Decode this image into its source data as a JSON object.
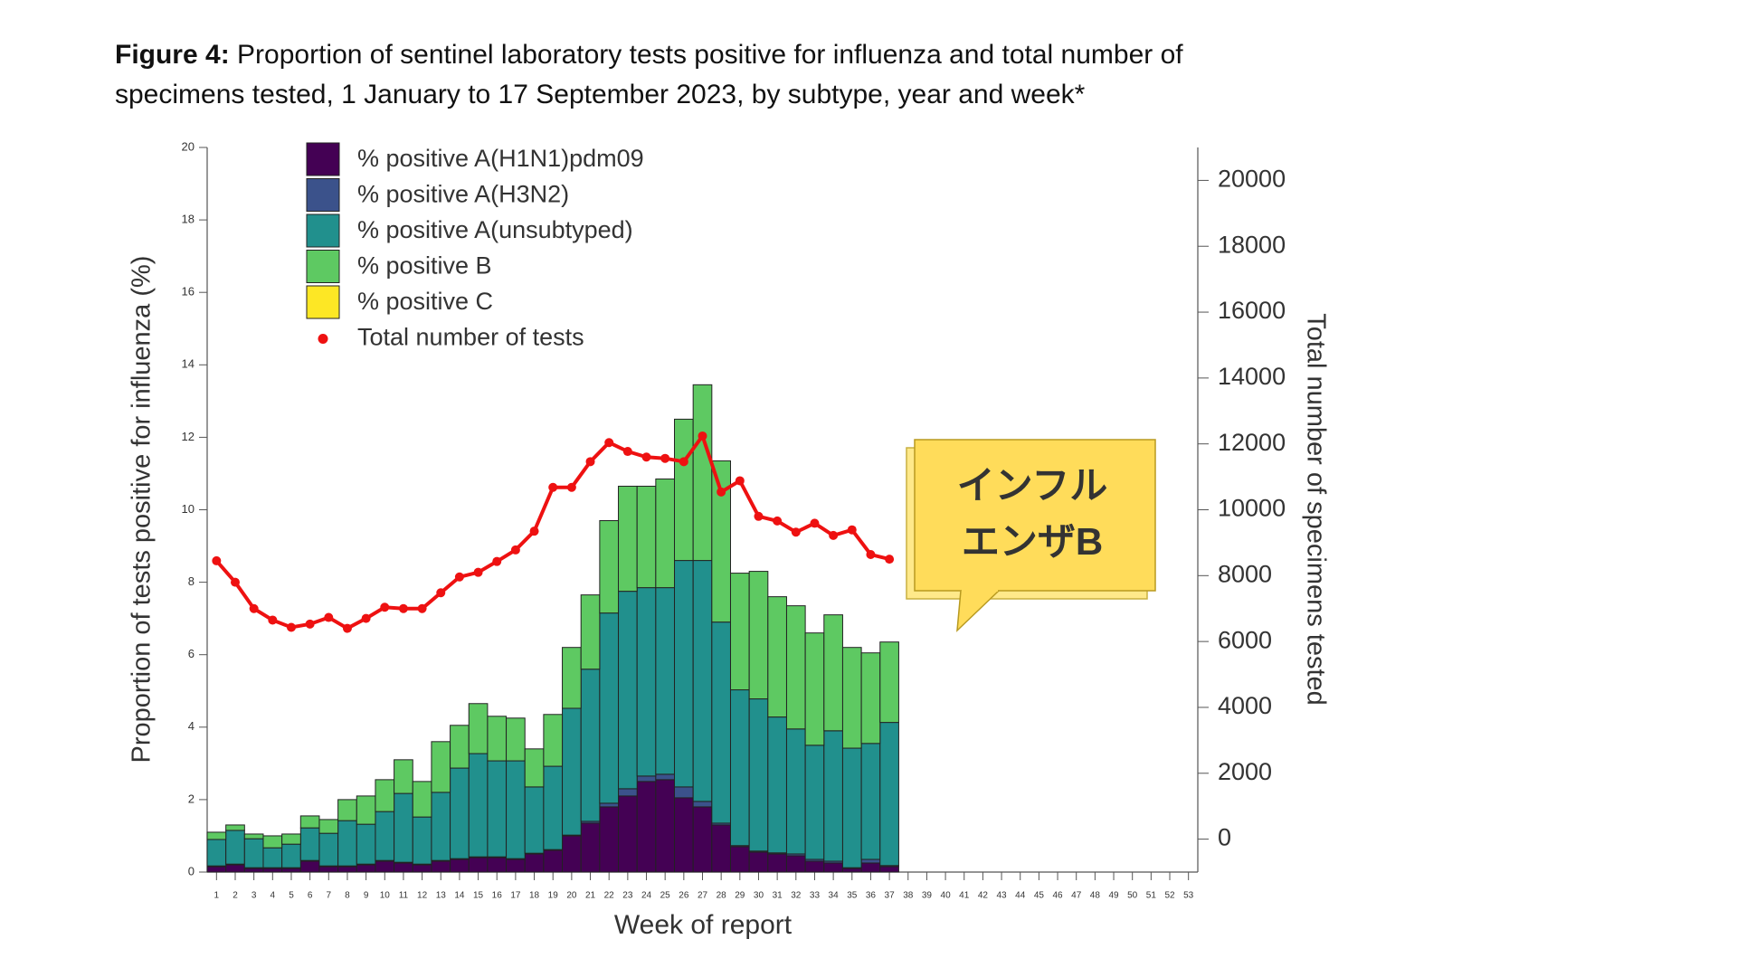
{
  "chart_data": {
    "type": "bar",
    "stacked": true,
    "figure_label": "Figure 4:",
    "title_lines": [
      "Proportion of sentinel laboratory tests positive for influenza and total number of",
      "specimens tested, 1 January to 17 September 2023, by subtype, year and week*"
    ],
    "x_label": "Week of report",
    "y_label": "Proportion of tests positive for influenza (%)",
    "y2_label": "Total number of specimens tested",
    "annotation_lines": [
      "インフル",
      "エンザB"
    ],
    "categories": [
      1,
      2,
      3,
      4,
      5,
      6,
      7,
      8,
      9,
      10,
      11,
      12,
      13,
      14,
      15,
      16,
      17,
      18,
      19,
      20,
      21,
      22,
      23,
      24,
      25,
      26,
      27,
      28,
      29,
      30,
      31,
      32,
      33,
      34,
      35,
      36,
      37,
      38,
      39,
      40,
      41,
      42,
      43,
      44,
      45,
      46,
      47,
      48,
      49,
      50,
      51,
      52,
      53
    ],
    "ylim": [
      0,
      20
    ],
    "yticks": [
      0,
      2,
      4,
      6,
      8,
      10,
      12,
      14,
      16,
      18,
      20
    ],
    "y2lim": [
      -1000,
      21000
    ],
    "y2ticks": [
      0,
      2000,
      4000,
      6000,
      8000,
      10000,
      12000,
      14000,
      16000,
      18000,
      20000
    ],
    "series": [
      {
        "name": "% positive A(H1N1)pdm09",
        "color": "#440154",
        "values": [
          0.15,
          0.2,
          0.1,
          0.1,
          0.1,
          0.3,
          0.15,
          0.15,
          0.2,
          0.3,
          0.25,
          0.2,
          0.3,
          0.35,
          0.4,
          0.4,
          0.35,
          0.5,
          0.6,
          1.0,
          1.35,
          1.8,
          2.1,
          2.5,
          2.55,
          2.05,
          1.8,
          1.3,
          0.7,
          0.55,
          0.5,
          0.45,
          0.3,
          0.25,
          0.1,
          0.25,
          0.15,
          null,
          null,
          null,
          null,
          null,
          null,
          null,
          null,
          null,
          null,
          null,
          null,
          null,
          null,
          null,
          null
        ]
      },
      {
        "name": "% positive A(H3N2)",
        "color": "#3b528b",
        "values": [
          0.02,
          0.02,
          0.02,
          0.02,
          0.02,
          0.02,
          0.02,
          0.02,
          0.02,
          0.02,
          0.02,
          0.02,
          0.02,
          0.02,
          0.02,
          0.02,
          0.02,
          0.02,
          0.02,
          0.02,
          0.05,
          0.1,
          0.2,
          0.15,
          0.15,
          0.3,
          0.15,
          0.05,
          0.03,
          0.03,
          0.03,
          0.05,
          0.05,
          0.05,
          0.02,
          0.1,
          0.03,
          null,
          null,
          null,
          null,
          null,
          null,
          null,
          null,
          null,
          null,
          null,
          null,
          null,
          null,
          null,
          null
        ]
      },
      {
        "name": "% positive A(unsubtyped)",
        "color": "#21908d",
        "values": [
          0.73,
          0.93,
          0.8,
          0.55,
          0.65,
          0.9,
          0.9,
          1.25,
          1.1,
          1.35,
          1.9,
          1.3,
          1.88,
          2.5,
          2.85,
          2.65,
          2.7,
          1.83,
          2.3,
          3.5,
          4.2,
          5.25,
          5.45,
          5.2,
          5.15,
          6.25,
          6.65,
          5.55,
          4.3,
          4.2,
          3.75,
          3.45,
          3.15,
          3.6,
          3.3,
          3.2,
          3.95,
          null,
          null,
          null,
          null,
          null,
          null,
          null,
          null,
          null,
          null,
          null,
          null,
          null,
          null,
          null,
          null
        ]
      },
      {
        "name": "% positive B",
        "color": "#5ec962",
        "values": [
          0.2,
          0.15,
          0.13,
          0.33,
          0.28,
          0.33,
          0.38,
          0.58,
          0.78,
          0.88,
          0.93,
          0.98,
          1.4,
          1.18,
          1.38,
          1.23,
          1.18,
          1.05,
          1.43,
          1.68,
          2.05,
          2.55,
          2.9,
          2.8,
          3.0,
          3.9,
          4.85,
          4.45,
          3.22,
          3.52,
          3.32,
          3.4,
          3.1,
          3.2,
          2.78,
          2.5,
          2.22,
          null,
          null,
          null,
          null,
          null,
          null,
          null,
          null,
          null,
          null,
          null,
          null,
          null,
          null,
          null,
          null
        ]
      },
      {
        "name": "% positive C",
        "color": "#fde725",
        "values": [
          0,
          0,
          0,
          0,
          0,
          0,
          0,
          0,
          0,
          0,
          0,
          0,
          0,
          0,
          0,
          0,
          0,
          0,
          0,
          0,
          0,
          0,
          0,
          0,
          0,
          0,
          0,
          0,
          0,
          0,
          0,
          0,
          0,
          0,
          0,
          0,
          0,
          null,
          null,
          null,
          null,
          null,
          null,
          null,
          null,
          null,
          null,
          null,
          null,
          null,
          null,
          null,
          null
        ]
      },
      {
        "name": "Total number of tests",
        "color": "#ee1111",
        "type": "line",
        "axis": "y2",
        "values": [
          8450,
          7800,
          7000,
          6650,
          6430,
          6530,
          6730,
          6400,
          6700,
          7040,
          7000,
          7000,
          7480,
          7960,
          8100,
          8430,
          8780,
          9350,
          10680,
          10680,
          11460,
          12040,
          11770,
          11600,
          11560,
          11460,
          12240,
          10540,
          10880,
          9800,
          9660,
          9320,
          9590,
          9220,
          9390,
          8640,
          8500,
          null,
          null,
          null,
          null,
          null,
          null,
          null,
          null,
          null,
          null,
          null,
          null,
          null,
          null,
          null,
          null
        ]
      }
    ]
  }
}
